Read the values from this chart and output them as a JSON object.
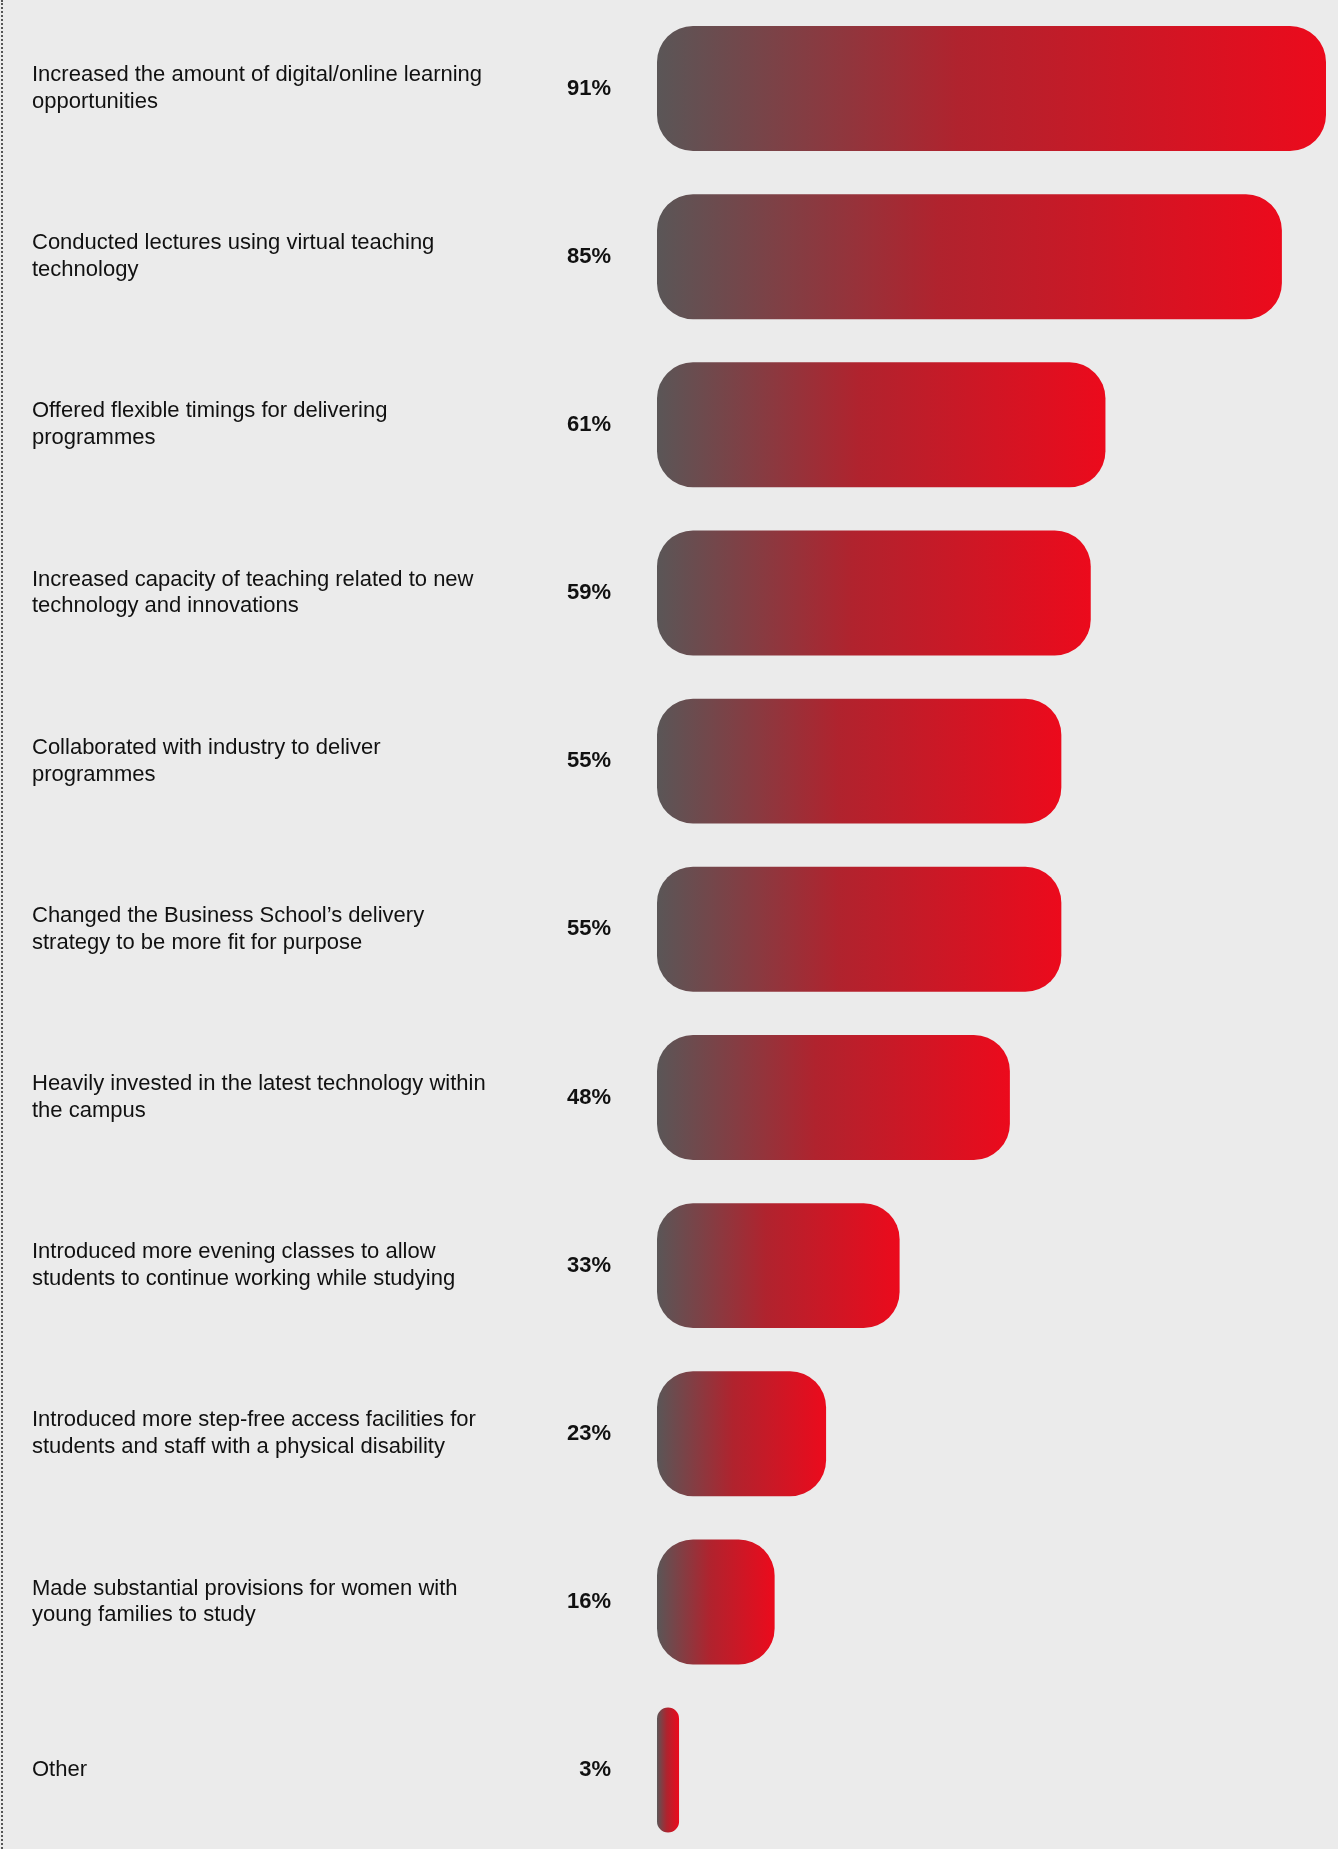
{
  "chart_data": {
    "type": "bar",
    "orientation": "horizontal",
    "color": "#ec0a1c",
    "categories": [
      "Increased the amount of digital/online learning opportunities",
      "Conducted lectures using virtual teaching technology",
      "Offered flexible timings for delivering programmes",
      "Increased capacity of teaching related to new technology and innovations",
      "Collaborated with industry to deliver programmes",
      "Changed the Business School’s delivery strategy to be more fit for purpose",
      "Heavily invested in the latest technology within the campus",
      "Introduced more evening classes to allow students to continue working while studying",
      "Introduced more step-free access facilities for students and staff with a physical disability",
      "Made substantial provisions for women with young families to study",
      "Other"
    ],
    "values": [
      91,
      85,
      61,
      59,
      55,
      55,
      48,
      33,
      23,
      16,
      3
    ],
    "value_labels": [
      "91%",
      "85%",
      "61%",
      "59%",
      "55%",
      "55%",
      "48%",
      "33%",
      "23%",
      "16%",
      "3%"
    ],
    "grid": false,
    "legend": false
  }
}
